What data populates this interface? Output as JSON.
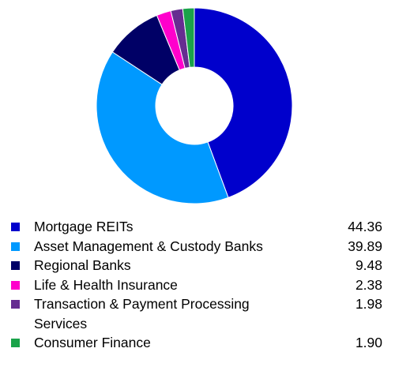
{
  "chart_data": {
    "type": "pie",
    "style": "donut",
    "categories": [
      "Mortgage REITs",
      "Asset Management & Custody Banks",
      "Regional Banks",
      "Life & Health Insurance",
      "Transaction & Payment Processing Services",
      "Consumer Finance"
    ],
    "values": [
      44.36,
      39.89,
      9.48,
      2.38,
      1.98,
      1.9
    ],
    "value_labels": [
      "44.36",
      "39.89",
      "9.48",
      "2.38",
      "1.98",
      "1.90"
    ],
    "colors": [
      "#0000cc",
      "#0099ff",
      "#000066",
      "#ff00cc",
      "#662d91",
      "#1aa34a"
    ],
    "legend": "bottom"
  }
}
